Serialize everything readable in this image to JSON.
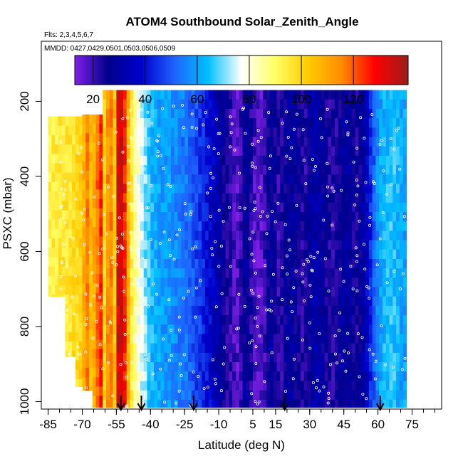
{
  "chart_data": {
    "type": "heatmap",
    "title": "ATOM4 Southbound Solar_Zenith_Angle",
    "subtitle_flights": "Flts: 2,3,4,5,6,7",
    "subtitle_dates": "MMDD: 0427,0429,0501,0503,0506,0509",
    "xlabel": "Latitude (deg N)",
    "ylabel": "PSXC (mbar)",
    "xlim": [
      -88,
      88
    ],
    "ylim": [
      1020,
      40
    ],
    "y_reversed": true,
    "x_ticks": [
      -85,
      -70,
      -55,
      -40,
      -25,
      -10,
      5,
      15,
      30,
      45,
      60,
      75
    ],
    "x_tick_labels": [
      "-85",
      "-70",
      "-55",
      "-40",
      "-25",
      "-10",
      "5",
      "15",
      "30",
      "45",
      "60",
      "75"
    ],
    "y_ticks": [
      200,
      400,
      600,
      800,
      1000
    ],
    "y_tick_labels": [
      "200",
      "400",
      "600",
      "800",
      "1000"
    ],
    "colorbar": {
      "range": [
        13,
        141
      ],
      "ticks": [
        20,
        40,
        60,
        80,
        100,
        120
      ],
      "tick_labels": [
        "20",
        "40",
        "60",
        "80",
        "100",
        "120"
      ],
      "colors": [
        "#7f1fe6",
        "#00008b",
        "#0000cd",
        "#1e64ff",
        "#00bfff",
        "#ffffff",
        "#ffff66",
        "#ffcc00",
        "#ff8c00",
        "#ff0000",
        "#9b1c1c"
      ]
    },
    "arrow_latitudes": [
      -53,
      -44,
      -21,
      19,
      61
    ],
    "zenith_profile": {
      "lat": [
        -85,
        -80,
        -75,
        -72,
        -70,
        -68,
        -66,
        -64,
        -62,
        -60,
        -58,
        -56,
        -54,
        -52,
        -50,
        -48,
        -46,
        -44,
        -42,
        -40,
        -36,
        -32,
        -28,
        -24,
        -20,
        -16,
        -12,
        -8,
        -6,
        -4,
        -2,
        0,
        2,
        4,
        6,
        8,
        10,
        12,
        14,
        16,
        18,
        20,
        22,
        24,
        26,
        28,
        30,
        32,
        34,
        36,
        38,
        40,
        42,
        44,
        46,
        48,
        50,
        52,
        54,
        56,
        58,
        60,
        62,
        64,
        66,
        68,
        70,
        72
      ],
      "sza": [
        93,
        95,
        97,
        99,
        103,
        118,
        105,
        112,
        130,
        96,
        125,
        99,
        137,
        135,
        110,
        92,
        82,
        76,
        70,
        64,
        60,
        59,
        56,
        53,
        48,
        42,
        35,
        27,
        23,
        20,
        17,
        22,
        30,
        24,
        18,
        16,
        19,
        26,
        29,
        21,
        23,
        28,
        30,
        27,
        24,
        22,
        28,
        33,
        30,
        27,
        24,
        22,
        24,
        28,
        30,
        27,
        24,
        26,
        32,
        40,
        50,
        57,
        62,
        64,
        66,
        64,
        61,
        60
      ]
    }
  }
}
